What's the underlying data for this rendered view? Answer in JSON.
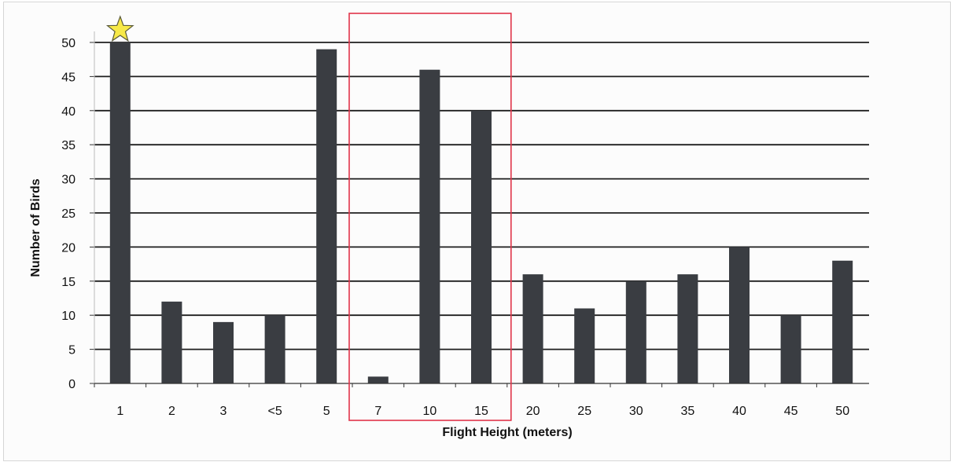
{
  "chart_data": {
    "type": "bar",
    "title": "",
    "xlabel": "Flight Height (meters)",
    "ylabel": "Number of Birds",
    "categories": [
      "1",
      "2",
      "3",
      "<5",
      "5",
      "7",
      "10",
      "15",
      "20",
      "25",
      "30",
      "35",
      "40",
      "45",
      "50"
    ],
    "values": [
      50,
      12,
      9,
      10,
      49,
      1,
      46,
      40,
      16,
      11,
      15,
      16,
      20,
      10,
      18
    ],
    "ylim": [
      0,
      50
    ],
    "yticks": [
      "0",
      "5",
      "10",
      "15",
      "20",
      "25",
      "30",
      "35",
      "40",
      "45",
      "50"
    ],
    "grid": true,
    "legend": "none",
    "highlight_categories": [
      "7",
      "10",
      "15"
    ],
    "star_category": "1"
  },
  "colors": {
    "bar": "#3a3d42",
    "gridline": "#1e1e1e",
    "highlight_box": "#e0354a",
    "star_fill": "#f7e948",
    "star_stroke": "#5a5a3a",
    "axis": "#333333"
  }
}
